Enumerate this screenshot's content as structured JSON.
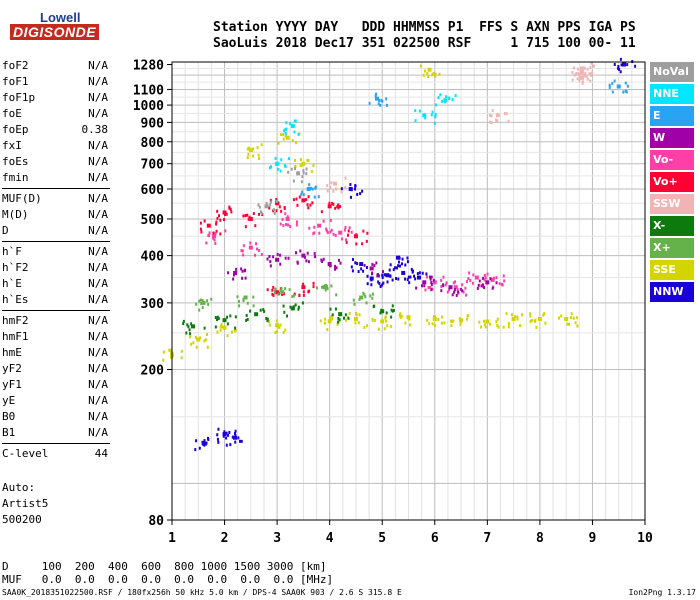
{
  "logo": {
    "line1": "Lowell",
    "line2": "DIGISONDE"
  },
  "header": {
    "line1": "Station YYYY DAY   DDD HHMMSS P1  FFS S AXN PPS IGA PS",
    "line2": "SaoLuis 2018 Dec17 351 022500 RSF     1 715 100 00- 11"
  },
  "params": [
    {
      "name": "foF2",
      "value": "N/A"
    },
    {
      "name": "foF1",
      "value": "N/A"
    },
    {
      "name": "foF1p",
      "value": "N/A"
    },
    {
      "name": "foE",
      "value": "N/A"
    },
    {
      "name": "foEp",
      "value": "0.38"
    },
    {
      "name": "fxI",
      "value": "N/A"
    },
    {
      "name": "foEs",
      "value": "N/A"
    },
    {
      "name": "fmin",
      "value": "N/A"
    },
    {
      "name": "MUF(D)",
      "value": "N/A"
    },
    {
      "name": "M(D)",
      "value": "N/A"
    },
    {
      "name": "D",
      "value": "N/A"
    },
    {
      "name": "h`F",
      "value": "N/A"
    },
    {
      "name": "h`F2",
      "value": "N/A"
    },
    {
      "name": "h`E",
      "value": "N/A"
    },
    {
      "name": "h`Es",
      "value": "N/A"
    },
    {
      "name": "hmF2",
      "value": "N/A"
    },
    {
      "name": "hmF1",
      "value": "N/A"
    },
    {
      "name": "hmE",
      "value": "N/A"
    },
    {
      "name": "yF2",
      "value": "N/A"
    },
    {
      "name": "yF1",
      "value": "N/A"
    },
    {
      "name": "yE",
      "value": "N/A"
    },
    {
      "name": "B0",
      "value": "N/A"
    },
    {
      "name": "B1",
      "value": "N/A"
    },
    {
      "name": "C-level",
      "value": "44"
    }
  ],
  "auto": {
    "line1": "Auto:",
    "line2": "Artist5",
    "line3": "500200"
  },
  "legend": [
    {
      "label": "NoVal",
      "color": "#9e9e9e"
    },
    {
      "label": "NNE",
      "color": "#00e6ff"
    },
    {
      "label": "E",
      "color": "#2aa4f2"
    },
    {
      "label": "W",
      "color": "#a000a8"
    },
    {
      "label": "Vo-",
      "color": "#ff3fa8"
    },
    {
      "label": "Vo+",
      "color": "#ff0033"
    },
    {
      "label": "SSW",
      "color": "#f0b4b4"
    },
    {
      "label": "X-",
      "color": "#0d7a0d"
    },
    {
      "label": "X+",
      "color": "#66b24a"
    },
    {
      "label": "SSE",
      "color": "#d4d400"
    },
    {
      "label": "NNW",
      "color": "#1a00d8"
    }
  ],
  "bottom": {
    "line1": "D     100  200  400  600  800 1000 1500 3000 [km]",
    "line2": "MUF   0.0  0.0  0.0  0.0  0.0  0.0  0.0  0.0 [MHz]"
  },
  "footer": {
    "left": "SAA0K_2018351022500.RSF / 180fx256h 50 kHz 5.0 km / DPS-4 SAA0K 903 / 2.6 S 315.8 E",
    "right": "Ion2Png 1.3.17"
  },
  "chart_data": {
    "type": "scatter",
    "title": "",
    "xlabel": "",
    "ylabel": "",
    "xlim": [
      1,
      10
    ],
    "ylim": [
      80,
      1300
    ],
    "y_scale": "log",
    "x_ticks": [
      1,
      2,
      3,
      4,
      5,
      6,
      7,
      8,
      9,
      10
    ],
    "y_ticks": [
      80,
      200,
      300,
      400,
      500,
      600,
      700,
      800,
      900,
      1000,
      1100,
      1280
    ],
    "grid": true,
    "legend_position": "right",
    "series": [
      {
        "name": "NNW",
        "color": "#1a00d8",
        "trace": [
          [
            1.6,
            128
          ],
          [
            2.0,
            135
          ],
          [
            2.2,
            132
          ],
          [
            4.8,
            348
          ],
          [
            5.1,
            355
          ],
          [
            5.4,
            360
          ],
          [
            5.7,
            350
          ],
          [
            4.6,
            380
          ],
          [
            5.3,
            395
          ],
          [
            4.4,
            600
          ],
          [
            9.6,
            1280
          ]
        ]
      },
      {
        "name": "SSE",
        "color": "#d4d400",
        "trace": [
          [
            1.0,
            218
          ],
          [
            1.5,
            240
          ],
          [
            2.0,
            258
          ],
          [
            3.0,
            262
          ],
          [
            4.0,
            268
          ],
          [
            4.5,
            272
          ],
          [
            5.0,
            268
          ],
          [
            5.5,
            275
          ],
          [
            6.0,
            272
          ],
          [
            6.5,
            270
          ],
          [
            7.0,
            268
          ],
          [
            7.5,
            272
          ],
          [
            8.0,
            272
          ],
          [
            8.5,
            272
          ],
          [
            2.5,
            760
          ],
          [
            3.2,
            820
          ],
          [
            3.5,
            700
          ],
          [
            5.9,
            1240
          ]
        ]
      },
      {
        "name": "Vo+",
        "color": "#ff0033",
        "trace": [
          [
            1.7,
            480
          ],
          [
            2.0,
            520
          ],
          [
            2.5,
            500
          ],
          [
            3.0,
            550
          ],
          [
            3.5,
            560
          ],
          [
            4.0,
            540
          ],
          [
            4.5,
            450
          ],
          [
            3.0,
            320
          ],
          [
            3.5,
            330
          ]
        ]
      },
      {
        "name": "Vo-",
        "color": "#ff3fa8",
        "trace": [
          [
            1.8,
            450
          ],
          [
            2.5,
            420
          ],
          [
            3.2,
            500
          ],
          [
            3.8,
            480
          ],
          [
            4.2,
            460
          ],
          [
            6.0,
            340
          ],
          [
            6.4,
            330
          ],
          [
            6.8,
            350
          ],
          [
            7.1,
            345
          ]
        ]
      },
      {
        "name": "W",
        "color": "#a000a8",
        "trace": [
          [
            2.2,
            360
          ],
          [
            3.0,
            390
          ],
          [
            3.5,
            400
          ],
          [
            4.0,
            380
          ],
          [
            4.8,
            370
          ],
          [
            5.8,
            340
          ],
          [
            6.3,
            330
          ],
          [
            7.0,
            340
          ]
        ]
      },
      {
        "name": "X-",
        "color": "#0d7a0d",
        "trace": [
          [
            1.4,
            260
          ],
          [
            2.0,
            270
          ],
          [
            2.6,
            280
          ],
          [
            3.3,
            290
          ],
          [
            4.2,
            280
          ],
          [
            5.0,
            285
          ]
        ]
      },
      {
        "name": "X+",
        "color": "#66b24a",
        "trace": [
          [
            1.6,
            300
          ],
          [
            2.4,
            310
          ],
          [
            3.1,
            320
          ],
          [
            3.9,
            330
          ],
          [
            4.6,
            310
          ]
        ]
      },
      {
        "name": "NNE",
        "color": "#00e6ff",
        "trace": [
          [
            3.3,
            880
          ],
          [
            3.0,
            700
          ],
          [
            6.2,
            1030
          ],
          [
            5.8,
            940
          ]
        ]
      },
      {
        "name": "E",
        "color": "#2aa4f2",
        "trace": [
          [
            4.9,
            1040
          ],
          [
            9.5,
            1120
          ],
          [
            3.6,
            600
          ]
        ]
      },
      {
        "name": "SSW",
        "color": "#f0b4b4",
        "trace": [
          [
            8.8,
            1180
          ],
          [
            8.8,
            1220
          ],
          [
            8.8,
            1250
          ],
          [
            7.2,
            940
          ],
          [
            4.1,
            620
          ]
        ]
      },
      {
        "name": "NoVal",
        "color": "#9e9e9e",
        "trace": [
          [
            3.4,
            660
          ],
          [
            2.8,
            540
          ]
        ]
      }
    ]
  }
}
